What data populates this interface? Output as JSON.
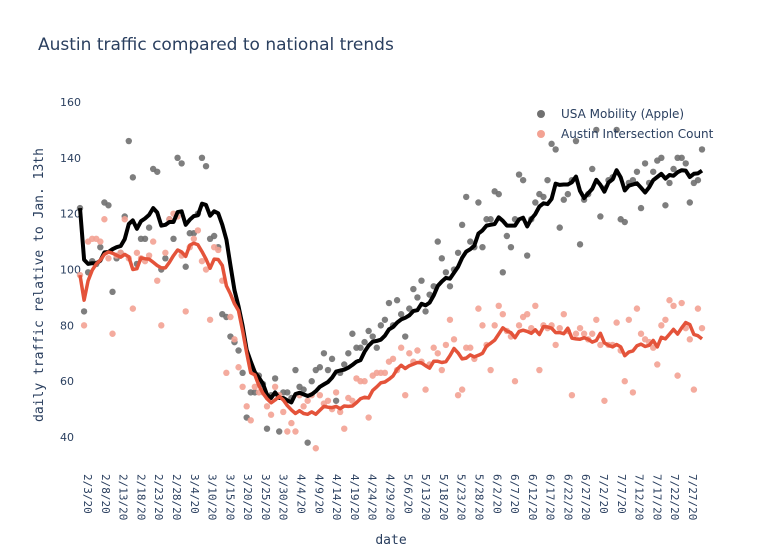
{
  "chart_data": {
    "type": "scatter",
    "title": "Austin traffic compared to national trends",
    "xlabel": "date",
    "ylabel": "daily traffic relative to Jan. 13th",
    "ylim": [
      30,
      165
    ],
    "yticks": [
      40,
      60,
      80,
      100,
      120,
      140,
      160
    ],
    "xtick_labels": [
      "2/3/20",
      "2/8/20",
      "2/13/20",
      "2/18/20",
      "2/23/20",
      "2/28/20",
      "3/4/20",
      "3/10/20",
      "3/15/20",
      "3/20/20",
      "3/25/20",
      "3/30/20",
      "4/4/20",
      "4/9/20",
      "4/14/20",
      "4/19/20",
      "4/24/20",
      "4/29/20",
      "5/6/20",
      "5/13/20",
      "5/18/20",
      "5/23/20",
      "5/28/20",
      "6/2/20",
      "6/7/20",
      "6/12/20",
      "6/17/20",
      "6/22/20",
      "6/27/20",
      "7/2/20",
      "7/7/20",
      "7/12/20",
      "7/17/20",
      "7/22/20",
      "7/27/20"
    ],
    "grid": false,
    "legend_position": "top-right",
    "series": [
      {
        "name": "USA Mobility (Apple)",
        "marker_color": "#707070",
        "line_color": "#000000",
        "points": [
          122,
          85,
          99,
          103,
          102,
          108,
          124,
          123,
          92,
          104,
          106,
          119,
          146,
          133,
          102,
          111,
          111,
          115,
          136,
          135,
          100,
          104,
          118,
          111,
          140,
          138,
          101,
          113,
          113,
          120,
          140,
          137,
          111,
          112,
          108,
          84,
          83,
          76,
          74,
          71,
          63,
          47,
          56,
          56,
          62,
          59,
          43,
          55,
          61,
          42,
          56,
          56,
          54,
          64,
          58,
          57,
          38,
          60,
          64,
          65,
          70,
          64,
          68,
          53,
          63,
          66,
          70,
          77,
          72,
          72,
          74,
          78,
          76,
          72,
          80,
          82,
          88,
          80,
          89,
          84,
          76,
          86,
          93,
          90,
          96,
          85,
          91,
          94,
          110,
          104,
          99,
          94,
          100,
          106,
          116,
          126,
          110,
          108,
          124,
          108,
          118,
          118,
          128,
          127,
          99,
          112,
          108,
          118,
          134,
          132,
          105,
          118,
          124,
          127,
          126,
          132,
          145,
          143,
          115,
          125,
          127,
          132,
          146,
          109,
          125,
          127,
          136,
          150,
          119,
          129,
          132,
          133,
          150,
          118,
          117,
          131,
          132,
          135,
          122,
          138,
          131,
          135,
          139,
          140,
          123,
          131,
          136,
          140,
          140,
          138,
          124,
          131,
          132,
          143
        ]
      },
      {
        "name": "Austin Intersection Count",
        "marker_color": "#f3a293",
        "line_color": "#e4533a",
        "points": [
          98,
          80,
          110,
          111,
          111,
          110,
          118,
          104,
          77,
          105,
          106,
          118,
          104,
          86,
          106,
          104,
          103,
          105,
          110,
          96,
          80,
          106,
          118,
          120,
          119,
          105,
          85,
          108,
          111,
          114,
          103,
          100,
          82,
          108,
          107,
          96,
          63,
          83,
          75,
          65,
          58,
          51,
          46,
          58,
          56,
          56,
          51,
          48,
          58,
          55,
          49,
          42,
          45,
          42,
          55,
          51,
          53,
          55,
          36,
          55,
          52,
          53,
          50,
          56,
          49,
          43,
          54,
          53,
          61,
          60,
          60,
          47,
          62,
          63,
          63,
          63,
          67,
          68,
          64,
          72,
          55,
          70,
          67,
          71,
          67,
          57,
          66,
          72,
          70,
          64,
          73,
          82,
          75,
          55,
          57,
          72,
          72,
          68,
          86,
          80,
          73,
          64,
          80,
          87,
          84,
          78,
          76,
          60,
          80,
          83,
          84,
          79,
          87,
          64,
          80,
          79,
          80,
          73,
          79,
          84,
          78,
          55,
          77,
          79,
          77,
          75,
          77,
          82,
          73,
          53,
          73,
          73,
          81,
          71,
          60,
          82,
          56,
          86,
          77,
          75,
          74,
          72,
          66,
          80,
          82,
          89,
          87,
          62,
          88,
          79,
          75,
          57,
          86,
          79
        ]
      }
    ]
  }
}
